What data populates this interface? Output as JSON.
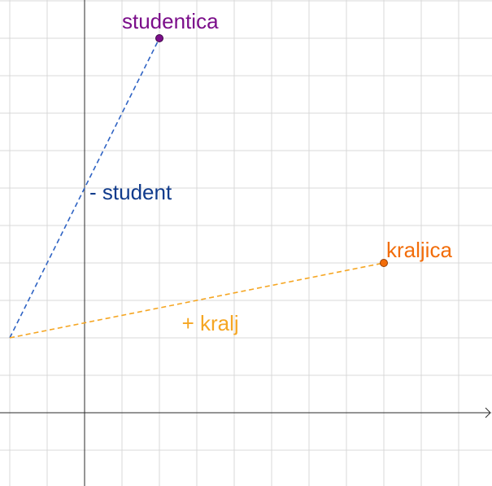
{
  "graph": {
    "colors": {
      "grid": "#d9d9d9",
      "axis": "#2b2b2b",
      "blue": "#2f63c4",
      "blue_label": "#103b8c",
      "orange": "#f5a623",
      "orange_point": "#f26d0a",
      "purple": "#7b0e8a"
    },
    "points": [
      {
        "id": "origin",
        "x": -2,
        "y": 2
      },
      {
        "id": "studentica",
        "x": 2,
        "y": 10,
        "label": "studentica"
      },
      {
        "id": "kraljica",
        "x": 8,
        "y": 4,
        "label": "kraljica"
      }
    ],
    "vectors": [
      {
        "id": "student",
        "from": "origin",
        "to": "studentica",
        "label": "- student"
      },
      {
        "id": "kralj",
        "from": "origin",
        "to": "kraljica",
        "label": "+ kralj"
      }
    ]
  }
}
